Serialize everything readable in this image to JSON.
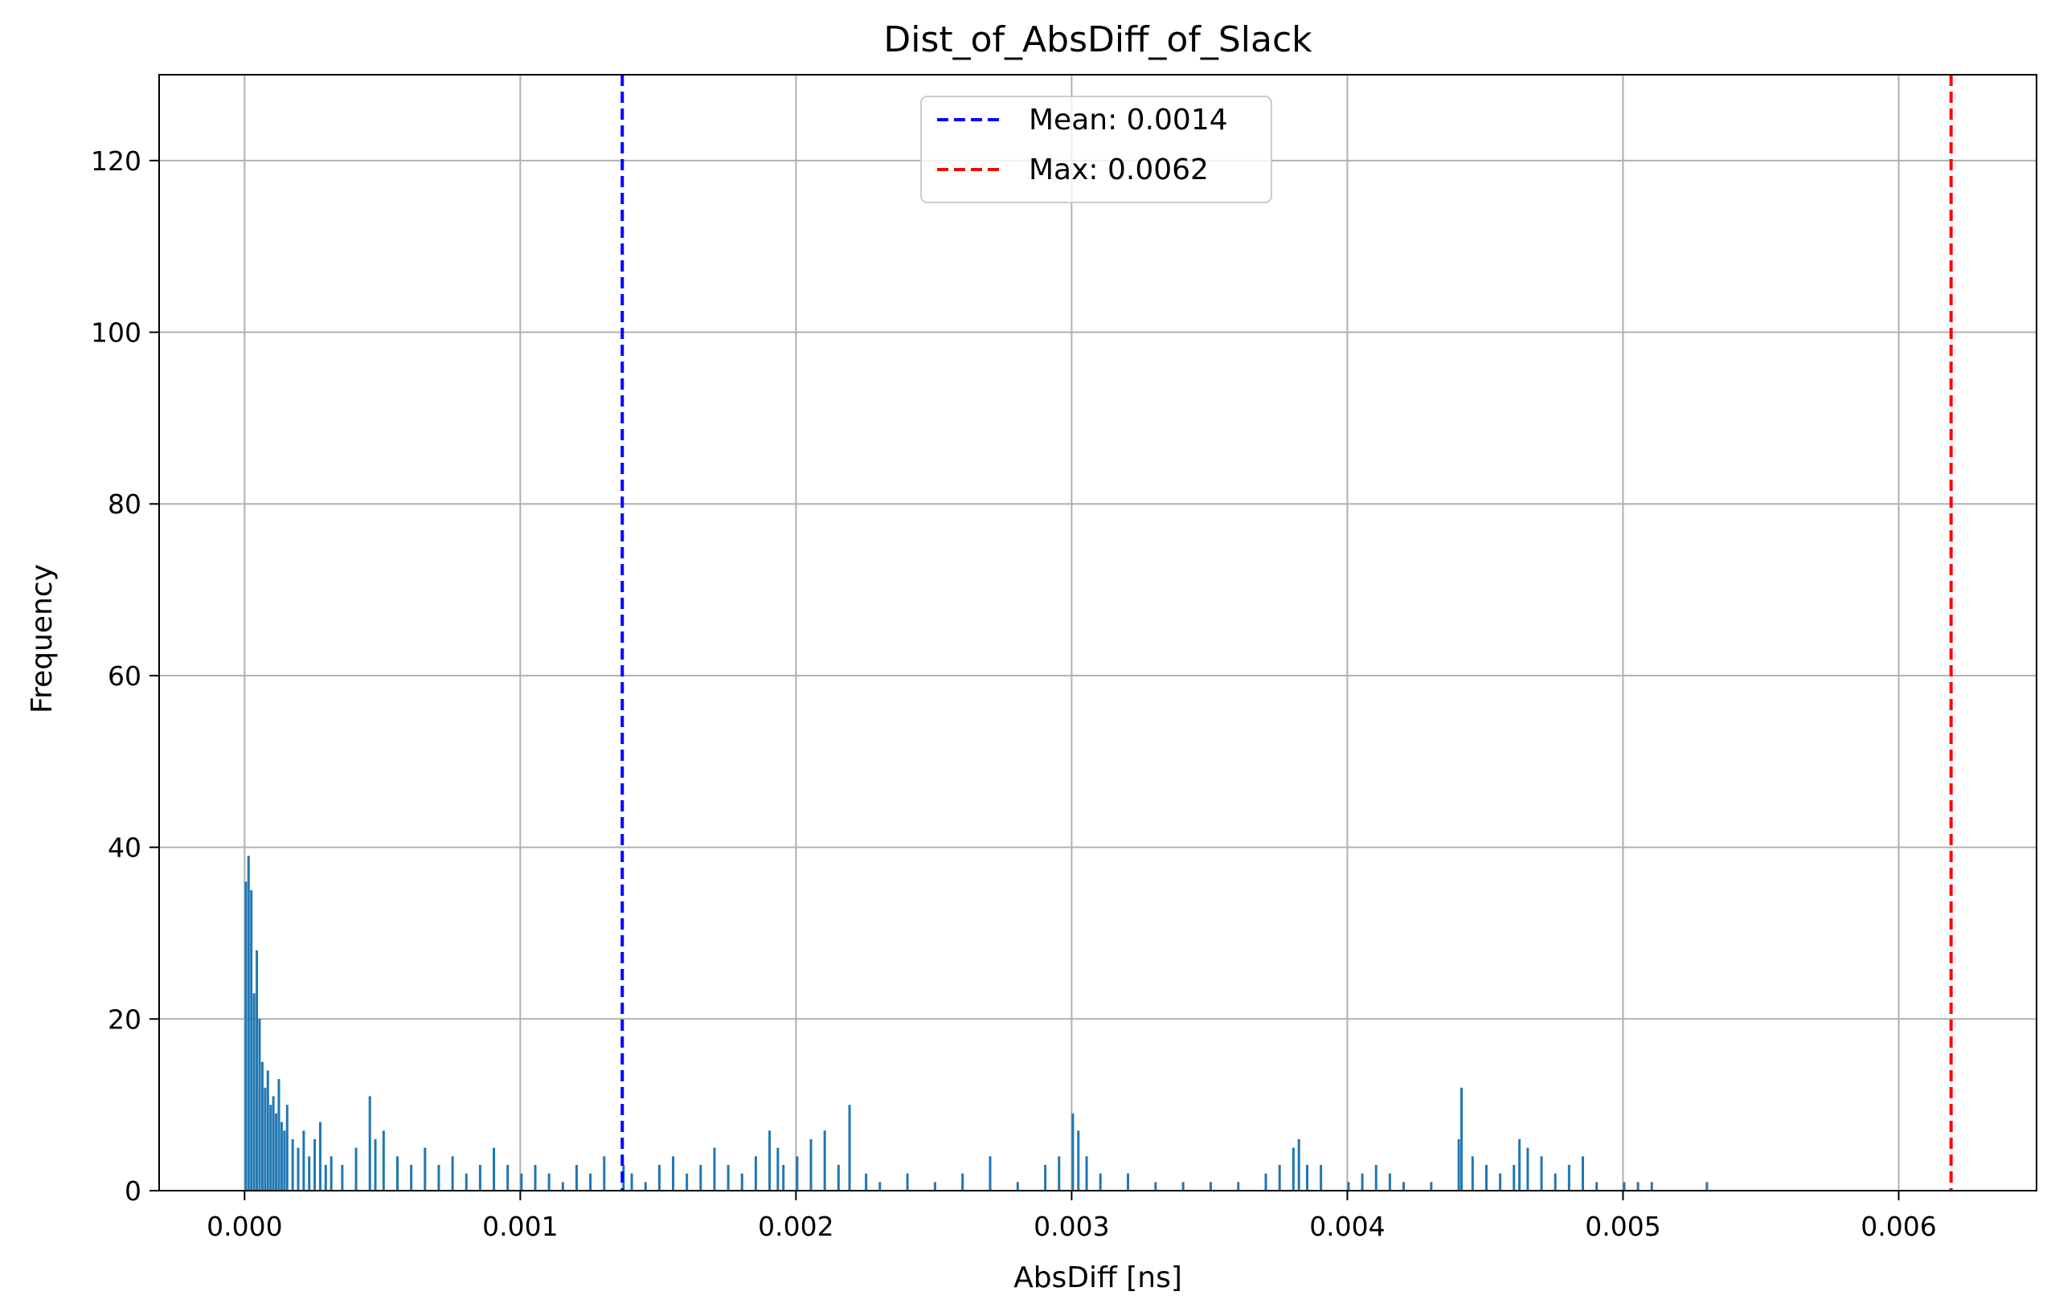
{
  "chart_data": {
    "type": "bar",
    "title": "Dist_of_AbsDiff_of_Slack",
    "xlabel": "AbsDiff [ns]",
    "ylabel": "Frequency",
    "xlim": [
      -0.00031,
      0.0065
    ],
    "ylim": [
      0,
      130
    ],
    "xticks": [
      0.0,
      0.001,
      0.002,
      0.003,
      0.004,
      0.005,
      0.006
    ],
    "xtick_labels": [
      "0.000",
      "0.001",
      "0.002",
      "0.003",
      "0.004",
      "0.005",
      "0.006"
    ],
    "yticks": [
      0,
      20,
      40,
      60,
      80,
      100,
      120
    ],
    "ytick_labels": [
      "0",
      "20",
      "40",
      "60",
      "80",
      "100",
      "120"
    ],
    "grid": true,
    "bar_color": "#1f77b4",
    "histogram_note": "approximate bin values estimated from the image",
    "bins": {
      "x": [
        0.0,
        1e-05,
        2e-05,
        3e-05,
        4e-05,
        5e-05,
        6e-05,
        7e-05,
        8e-05,
        9e-05,
        0.0001,
        0.00011,
        0.00012,
        0.00013,
        0.00014,
        0.00015,
        0.00017,
        0.00019,
        0.00021,
        0.00023,
        0.00025,
        0.00027,
        0.00029,
        0.00031,
        0.00035,
        0.0004,
        0.00045,
        0.00047,
        0.0005,
        0.00055,
        0.0006,
        0.00065,
        0.0007,
        0.00075,
        0.0008,
        0.00085,
        0.0009,
        0.00095,
        0.001,
        0.00105,
        0.0011,
        0.00115,
        0.0012,
        0.00125,
        0.0013,
        0.00137,
        0.0014,
        0.00145,
        0.0015,
        0.00155,
        0.0016,
        0.00165,
        0.0017,
        0.00175,
        0.0018,
        0.00185,
        0.0019,
        0.00193,
        0.00195,
        0.002,
        0.00205,
        0.0021,
        0.00215,
        0.00219,
        0.00225,
        0.0023,
        0.0024,
        0.0025,
        0.0026,
        0.0027,
        0.0028,
        0.0029,
        0.00295,
        0.003,
        0.00302,
        0.00305,
        0.0031,
        0.0032,
        0.0033,
        0.0034,
        0.0035,
        0.0036,
        0.0037,
        0.00375,
        0.0038,
        0.00382,
        0.00385,
        0.0039,
        0.004,
        0.00405,
        0.0041,
        0.00415,
        0.0042,
        0.0043,
        0.0044,
        0.00441,
        0.00445,
        0.0045,
        0.00455,
        0.0046,
        0.00462,
        0.00465,
        0.0047,
        0.00475,
        0.0048,
        0.00485,
        0.0049,
        0.005,
        0.00505,
        0.0051,
        0.0053
      ],
      "y": [
        36,
        39,
        35,
        23,
        28,
        20,
        15,
        12,
        14,
        10,
        11,
        9,
        13,
        8,
        7,
        10,
        6,
        5,
        7,
        4,
        6,
        8,
        3,
        4,
        3,
        5,
        11,
        6,
        7,
        4,
        3,
        5,
        3,
        4,
        2,
        3,
        5,
        3,
        2,
        3,
        2,
        1,
        3,
        2,
        4,
        3,
        2,
        1,
        3,
        4,
        2,
        3,
        5,
        3,
        2,
        4,
        7,
        5,
        3,
        4,
        6,
        7,
        3,
        10,
        2,
        1,
        2,
        1,
        2,
        4,
        1,
        3,
        4,
        9,
        7,
        4,
        2,
        2,
        1,
        1,
        1,
        1,
        2,
        3,
        5,
        6,
        3,
        3,
        1,
        2,
        3,
        2,
        1,
        1,
        6,
        12,
        4,
        3,
        2,
        3,
        6,
        5,
        4,
        2,
        3,
        4,
        1,
        1,
        1,
        1,
        1
      ]
    },
    "reference_lines": [
      {
        "label": "Mean: 0.0014",
        "x": 0.00137,
        "color": "#0000ff",
        "style": "dashed"
      },
      {
        "label": "Max: 0.0062",
        "x": 0.00619,
        "color": "#ff0000",
        "style": "dashed"
      }
    ],
    "legend": {
      "placement": "upper center",
      "entries": [
        "Mean: 0.0014",
        "Max: 0.0062"
      ]
    }
  }
}
